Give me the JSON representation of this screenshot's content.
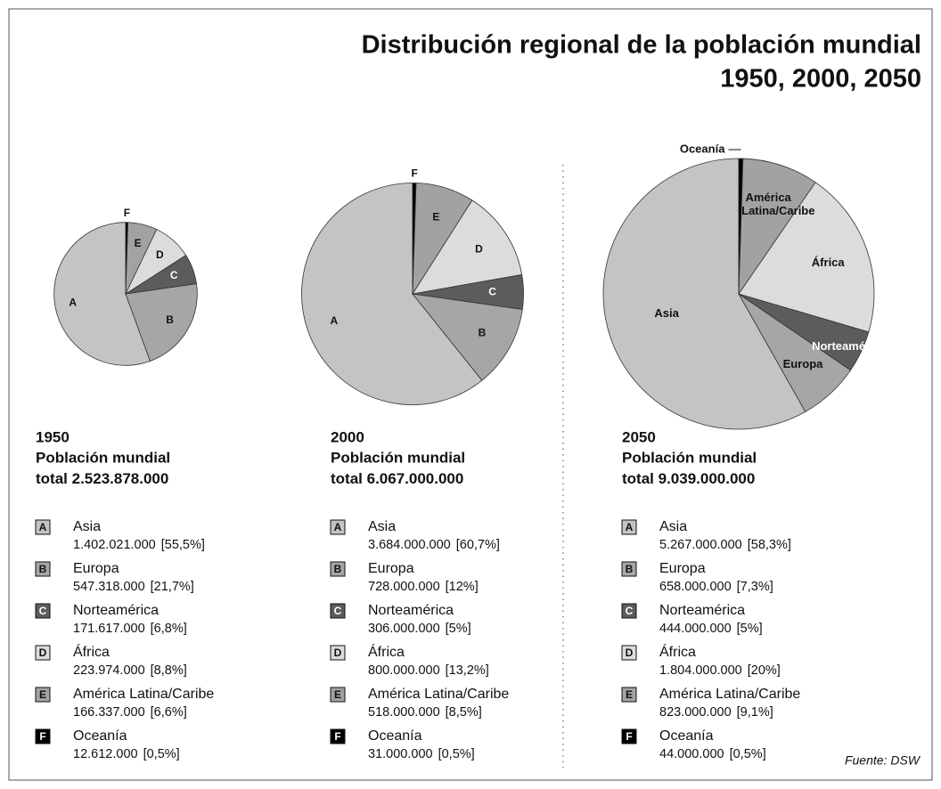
{
  "title": [
    "Distribución regional de la población mundial",
    "1950, 2000, 2050"
  ],
  "source": "Fuente: DSW",
  "chart_data": [
    {
      "type": "pie",
      "title": "1950",
      "subtitle": "Población mundial",
      "total_prefix": "total",
      "total": 2523878000,
      "total_label": "2.523.878.000",
      "direction": "counterclockwise",
      "pie_label": "letters",
      "categories": [
        "Asia",
        "Europa",
        "Norteamérica",
        "África",
        "América Latina/Caribe",
        "Oceanía"
      ],
      "letters": [
        "A",
        "B",
        "C",
        "D",
        "E",
        "F"
      ],
      "values": [
        55.5,
        21.7,
        6.8,
        8.8,
        6.6,
        0.5
      ],
      "value_labels": [
        "[55,5%]",
        "[21,7%]",
        "[6,8%]",
        "[8,8%]",
        "[6,6%]",
        "[0,5%]"
      ],
      "populations": [
        1402021000,
        547318000,
        171617000,
        223974000,
        166337000,
        12612000
      ],
      "population_labels": [
        "1.402.021.000",
        "547.318.000",
        "171.617.000",
        "223.974.000",
        "166.337.000",
        "12.612.000"
      ],
      "colors": [
        "#c4c4c4",
        "#a6a6a6",
        "#5c5c5c",
        "#dcdcdc",
        "#a2a2a2",
        "#000000"
      ]
    },
    {
      "type": "pie",
      "title": "2000",
      "subtitle": "Población mundial",
      "total_prefix": "total",
      "total": 6067000000,
      "total_label": "6.067.000.000",
      "direction": "counterclockwise",
      "pie_label": "letters",
      "categories": [
        "Asia",
        "Europa",
        "Norteamérica",
        "África",
        "América Latina/Caribe",
        "Oceanía"
      ],
      "letters": [
        "A",
        "B",
        "C",
        "D",
        "E",
        "F"
      ],
      "values": [
        60.7,
        12,
        5,
        13.2,
        8.5,
        0.5
      ],
      "value_labels": [
        "[60,7%]",
        "[12%]",
        "[5%]",
        "[13,2%]",
        "[8,5%]",
        "[0,5%]"
      ],
      "populations": [
        3684000000,
        728000000,
        306000000,
        800000000,
        518000000,
        31000000
      ],
      "population_labels": [
        "3.684.000.000",
        "728.000.000",
        "306.000.000",
        "800.000.000",
        "518.000.000",
        "31.000.000"
      ],
      "colors": [
        "#c4c4c4",
        "#a6a6a6",
        "#5c5c5c",
        "#dcdcdc",
        "#a2a2a2",
        "#000000"
      ]
    },
    {
      "type": "pie",
      "title": "2050",
      "subtitle": "Población mundial",
      "total_prefix": "total",
      "total": 9039000000,
      "total_label": "9.039.000.000",
      "direction": "counterclockwise",
      "pie_label": "categories",
      "categories": [
        "Asia",
        "Europa",
        "Norteamérica",
        "África",
        "América Latina/Caribe",
        "Oceanía"
      ],
      "letters": [
        "A",
        "B",
        "C",
        "D",
        "E",
        "F"
      ],
      "values": [
        58.3,
        7.3,
        5,
        20,
        9.1,
        0.5
      ],
      "value_labels": [
        "[58,3%]",
        "[7,3%]",
        "[5%]",
        "[20%]",
        "[9,1%]",
        "[0,5%]"
      ],
      "populations": [
        5267000000,
        658000000,
        444000000,
        1804000000,
        823000000,
        44000000
      ],
      "population_labels": [
        "5.267.000.000",
        "658.000.000",
        "444.000.000",
        "1.804.000.000",
        "823.000.000",
        "44.000.000"
      ],
      "colors": [
        "#c4c4c4",
        "#a6a6a6",
        "#5c5c5c",
        "#dcdcdc",
        "#a2a2a2",
        "#000000"
      ]
    }
  ]
}
